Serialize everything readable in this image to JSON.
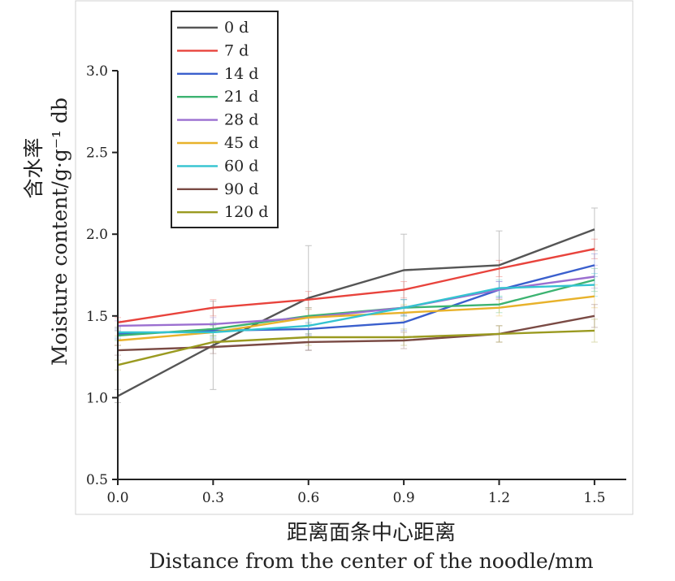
{
  "chart_data": {
    "type": "line",
    "xlabel_cn": "距离面条中心距离",
    "xlabel_en": "Distance from the center of the noodle/mm",
    "ylabel_cn": "含水率",
    "ylabel_en": "Moisture content/g·g⁻¹ db",
    "x": [
      0.0,
      0.3,
      0.6,
      0.9,
      1.2,
      1.5
    ],
    "xticks": [
      "0.0",
      "0.3",
      "0.6",
      "0.9",
      "1.2",
      "1.5"
    ],
    "yticks": [
      "0.5",
      "1.0",
      "1.5",
      "2.0",
      "2.5",
      "3.0"
    ],
    "xlim": [
      0.0,
      1.6
    ],
    "ylim": [
      0.5,
      3.0
    ],
    "legend_position": "top-left",
    "series": [
      {
        "name": "0 d",
        "color": "#555555",
        "values": [
          1.01,
          1.32,
          1.61,
          1.78,
          1.81,
          2.03
        ],
        "errors": [
          0.04,
          0.27,
          0.32,
          0.22,
          0.21,
          0.13
        ]
      },
      {
        "name": "7 d",
        "color": "#e8433c",
        "values": [
          1.46,
          1.55,
          1.6,
          1.66,
          1.79,
          1.91
        ],
        "errors": [
          0.03,
          0.05,
          0.05,
          0.05,
          0.05,
          0.06
        ]
      },
      {
        "name": "14 d",
        "color": "#3a5fcd",
        "values": [
          1.39,
          1.41,
          1.42,
          1.46,
          1.66,
          1.81
        ],
        "errors": [
          0.03,
          0.04,
          0.04,
          0.05,
          0.05,
          0.07
        ]
      },
      {
        "name": "21 d",
        "color": "#3cb371",
        "values": [
          1.38,
          1.42,
          1.5,
          1.55,
          1.57,
          1.72
        ],
        "errors": [
          0.03,
          0.04,
          0.05,
          0.05,
          0.05,
          0.07
        ]
      },
      {
        "name": "28 d",
        "color": "#9b6fd0",
        "values": [
          1.44,
          1.45,
          1.49,
          1.55,
          1.66,
          1.74
        ],
        "errors": [
          0.03,
          0.04,
          0.05,
          0.05,
          0.05,
          0.07
        ]
      },
      {
        "name": "45 d",
        "color": "#e8b22b",
        "values": [
          1.35,
          1.4,
          1.49,
          1.52,
          1.55,
          1.62
        ],
        "errors": [
          0.03,
          0.04,
          0.05,
          0.05,
          0.05,
          0.07
        ]
      },
      {
        "name": "60 d",
        "color": "#33c3d0",
        "values": [
          1.4,
          1.4,
          1.44,
          1.55,
          1.67,
          1.69
        ],
        "errors": [
          0.03,
          0.04,
          0.05,
          0.05,
          0.05,
          0.07
        ]
      },
      {
        "name": "90 d",
        "color": "#7a4a44",
        "values": [
          1.29,
          1.31,
          1.34,
          1.35,
          1.39,
          1.5
        ],
        "errors": [
          0.03,
          0.04,
          0.05,
          0.05,
          0.05,
          0.07
        ]
      },
      {
        "name": "120 d",
        "color": "#9a9a20",
        "values": [
          1.2,
          1.34,
          1.37,
          1.37,
          1.39,
          1.41
        ],
        "errors": [
          0.03,
          0.04,
          0.05,
          0.05,
          0.05,
          0.07
        ]
      }
    ]
  }
}
